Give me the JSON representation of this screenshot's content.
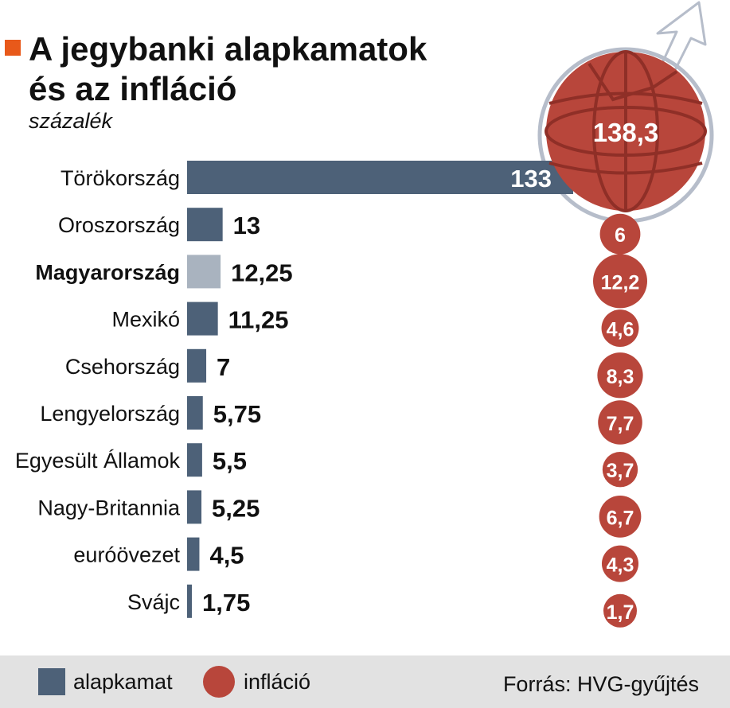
{
  "colors": {
    "accent": "#e8591a",
    "rate": "#4d6178",
    "rate_highlight": "#a9b3bf",
    "inflation": "#b8463b",
    "footer_bg": "#e2e2e2",
    "globe_ring": "#b6bdca"
  },
  "header": {
    "title_line1": "A jegybanki alapkamatok",
    "title_line2": "és az infláció",
    "subtitle": "százalék"
  },
  "chart_data": {
    "type": "bar",
    "unit": "százalék",
    "categories": [
      "Törökország",
      "Oroszország",
      "Magyarország",
      "Mexikó",
      "Csehország",
      "Lengyelország",
      "Egyesült Államok",
      "Nagy-Britannia",
      "euróövezet",
      "Svájc"
    ],
    "highlight": "Magyarország",
    "series": [
      {
        "name": "alapkamat",
        "values": [
          133,
          13,
          12.25,
          11.25,
          7,
          5.75,
          5.5,
          5.25,
          4.5,
          1.75
        ],
        "labels": [
          "133",
          "13",
          "12,25",
          "11,25",
          "7",
          "5,75",
          "5,5",
          "5,25",
          "4,5",
          "1,75"
        ]
      },
      {
        "name": "infláció",
        "values": [
          138.3,
          6,
          12.2,
          4.6,
          8.3,
          7.7,
          3.7,
          6.7,
          4.3,
          1.7
        ],
        "labels": [
          "138,3",
          "6",
          "12,2",
          "4,6",
          "8,3",
          "7,7",
          "3,7",
          "6,7",
          "4,3",
          "1,7"
        ]
      }
    ],
    "grid": false,
    "legend": "bottom-left"
  },
  "legend": {
    "rate_label": "alapkamat",
    "inflation_label": "infláció"
  },
  "footer": {
    "source": "Forrás: HVG-gyűjtés"
  }
}
